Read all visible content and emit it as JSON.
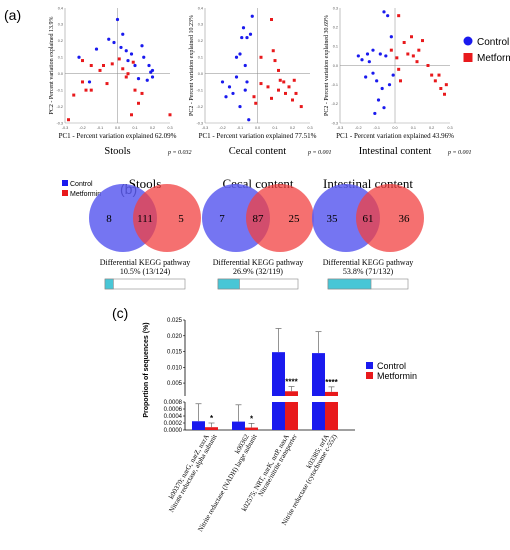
{
  "panel_labels": {
    "a": "(a)",
    "b": "(b)",
    "c": "(c)"
  },
  "legend_a": {
    "control": "Control",
    "metformin": "Metformin",
    "control_color": "#1a1aee",
    "metformin_color": "#e8191c"
  },
  "legend_b": {
    "control": "Control",
    "metformin": "Metformin"
  },
  "legend_c": {
    "control": "Control",
    "metformin": "Metformin"
  },
  "chart_data": [
    {
      "type": "scatter",
      "title": "Stools",
      "xlabel": "PC1 - Percent variation explained 62.09%",
      "ylabel": "PC2 - Percent variation explained 13.9%",
      "p_value": "p = 0.032",
      "xlim": [
        -0.3,
        0.3
      ],
      "ylim": [
        -0.3,
        0.4
      ],
      "xticks": [
        "-0.3",
        "-0.2",
        "-0.1",
        "0.0",
        "0.1",
        "0.2",
        "0.3"
      ],
      "yticks": [
        "-0.3",
        "-0.2",
        "-0.1",
        "0.0",
        "0.1",
        "0.2",
        "0.3",
        "0.4"
      ],
      "series": [
        {
          "name": "Control",
          "color": "#1a1aee",
          "points": [
            [
              -0.12,
              0.15
            ],
            [
              -0.05,
              0.21
            ],
            [
              0.0,
              0.33
            ],
            [
              0.03,
              0.24
            ],
            [
              -0.02,
              0.19
            ],
            [
              0.02,
              0.16
            ],
            [
              0.08,
              0.12
            ],
            [
              0.05,
              0.14
            ],
            [
              0.1,
              0.05
            ],
            [
              0.15,
              0.1
            ],
            [
              0.18,
              0.05
            ],
            [
              0.2,
              0.02
            ],
            [
              0.2,
              -0.02
            ],
            [
              0.17,
              -0.04
            ],
            [
              -0.22,
              0.1
            ],
            [
              -0.16,
              -0.05
            ],
            [
              0.12,
              -0.03
            ],
            [
              0.06,
              0.08
            ],
            [
              0.14,
              0.17
            ],
            [
              0.19,
              0.01
            ]
          ]
        },
        {
          "name": "Metformin",
          "color": "#e8191c",
          "points": [
            [
              -0.2,
              0.08
            ],
            [
              -0.15,
              0.05
            ],
            [
              -0.08,
              0.05
            ],
            [
              -0.1,
              0.02
            ],
            [
              -0.03,
              0.06
            ],
            [
              0.01,
              0.09
            ],
            [
              0.03,
              0.03
            ],
            [
              -0.06,
              -0.06
            ],
            [
              -0.15,
              -0.1
            ],
            [
              -0.18,
              -0.1
            ],
            [
              -0.25,
              -0.13
            ],
            [
              -0.28,
              -0.28
            ],
            [
              0.05,
              -0.02
            ],
            [
              0.09,
              0.07
            ],
            [
              0.06,
              0.0
            ],
            [
              0.1,
              -0.1
            ],
            [
              0.08,
              -0.25
            ],
            [
              0.12,
              -0.18
            ],
            [
              0.14,
              -0.12
            ],
            [
              0.3,
              -0.25
            ],
            [
              -0.2,
              -0.05
            ]
          ]
        }
      ]
    },
    {
      "type": "scatter",
      "title": "Cecal content",
      "xlabel": "PC1 - Percent variation explained 77.51%",
      "ylabel": "PC2 - Percent variation explained 10.23%",
      "p_value": "p = 0.001",
      "xlim": [
        -0.3,
        0.3
      ],
      "ylim": [
        -0.3,
        0.4
      ],
      "xticks": [
        "-0.3",
        "-0.2",
        "-0.1",
        "0.0",
        "0.1",
        "0.2",
        "0.3"
      ],
      "yticks": [
        "-0.3",
        "-0.2",
        "-0.1",
        "0.0",
        "0.1",
        "0.2",
        "0.3",
        "0.4"
      ],
      "series": [
        {
          "name": "Control",
          "color": "#1a1aee",
          "points": [
            [
              -0.09,
              0.22
            ],
            [
              -0.06,
              0.22
            ],
            [
              -0.04,
              0.24
            ],
            [
              -0.08,
              0.28
            ],
            [
              -0.03,
              0.35
            ],
            [
              -0.1,
              0.12
            ],
            [
              -0.07,
              0.05
            ],
            [
              -0.06,
              -0.05
            ],
            [
              -0.12,
              -0.02
            ],
            [
              -0.16,
              -0.08
            ],
            [
              -0.18,
              -0.14
            ],
            [
              -0.1,
              -0.2
            ],
            [
              -0.07,
              -0.1
            ],
            [
              -0.2,
              -0.05
            ],
            [
              -0.05,
              -0.28
            ],
            [
              -0.12,
              0.1
            ],
            [
              -0.14,
              -0.12
            ]
          ]
        },
        {
          "name": "Metformin",
          "color": "#e8191c",
          "points": [
            [
              0.08,
              0.33
            ],
            [
              0.09,
              0.14
            ],
            [
              0.12,
              0.02
            ],
            [
              0.15,
              -0.05
            ],
            [
              0.18,
              -0.08
            ],
            [
              0.21,
              -0.04
            ],
            [
              0.22,
              -0.12
            ],
            [
              0.2,
              -0.16
            ],
            [
              0.16,
              -0.12
            ],
            [
              0.12,
              -0.1
            ],
            [
              0.08,
              -0.15
            ],
            [
              0.06,
              -0.08
            ],
            [
              0.13,
              -0.04
            ],
            [
              -0.01,
              -0.18
            ],
            [
              -0.02,
              -0.14
            ],
            [
              0.02,
              -0.06
            ],
            [
              0.25,
              -0.2
            ],
            [
              0.02,
              0.1
            ],
            [
              0.1,
              0.08
            ]
          ]
        }
      ]
    },
    {
      "type": "scatter",
      "title": "Intestinal content",
      "xlabel": "PC1 - Percent variation explained 43.96%",
      "ylabel": "PC2 - Percent variation explained 30.69%",
      "p_value": "p = 0.001",
      "xlim": [
        -0.3,
        0.3
      ],
      "ylim": [
        -0.3,
        0.3
      ],
      "xticks": [
        "-0.3",
        "-0.2",
        "-0.1",
        "0.0",
        "0.1",
        "0.2",
        "0.3"
      ],
      "yticks": [
        "-0.3",
        "-0.2",
        "-0.1",
        "0.0",
        "0.1",
        "0.2",
        "0.3"
      ],
      "series": [
        {
          "name": "Control",
          "color": "#1a1aee",
          "points": [
            [
              -0.06,
              0.28
            ],
            [
              -0.04,
              0.26
            ],
            [
              -0.02,
              0.15
            ],
            [
              -0.05,
              0.05
            ],
            [
              -0.08,
              0.06
            ],
            [
              -0.12,
              0.08
            ],
            [
              -0.15,
              0.06
            ],
            [
              -0.18,
              0.03
            ],
            [
              -0.2,
              0.05
            ],
            [
              -0.14,
              0.02
            ],
            [
              -0.12,
              -0.04
            ],
            [
              -0.1,
              -0.08
            ],
            [
              -0.07,
              -0.12
            ],
            [
              -0.09,
              -0.18
            ],
            [
              -0.06,
              -0.22
            ],
            [
              -0.11,
              -0.25
            ],
            [
              -0.03,
              -0.1
            ],
            [
              -0.01,
              -0.05
            ],
            [
              -0.16,
              -0.06
            ]
          ]
        },
        {
          "name": "Metformin",
          "color": "#e8191c",
          "points": [
            [
              0.02,
              0.26
            ],
            [
              0.05,
              0.12
            ],
            [
              0.07,
              0.06
            ],
            [
              0.1,
              0.05
            ],
            [
              0.12,
              0.02
            ],
            [
              0.09,
              0.15
            ],
            [
              0.15,
              0.13
            ],
            [
              0.18,
              0.0
            ],
            [
              0.2,
              -0.05
            ],
            [
              0.22,
              -0.08
            ],
            [
              0.25,
              -0.12
            ],
            [
              0.27,
              -0.15
            ],
            [
              0.24,
              -0.05
            ],
            [
              0.02,
              -0.02
            ],
            [
              0.01,
              0.04
            ],
            [
              0.03,
              -0.08
            ],
            [
              0.28,
              -0.1
            ],
            [
              0.13,
              0.08
            ],
            [
              -0.02,
              0.08
            ]
          ]
        }
      ]
    },
    {
      "type": "venn",
      "title": "Stools",
      "left_only": "8",
      "overlap": "111",
      "right_only": "5",
      "caption_line1": "Differential KEGG pathway",
      "caption_line2": "10.5% (13/124)",
      "fraction": 0.105
    },
    {
      "type": "venn",
      "title": "Cecal content",
      "left_only": "7",
      "overlap": "87",
      "right_only": "25",
      "caption_line1": "Differential KEGG pathway",
      "caption_line2": "26.9% (32/119)",
      "fraction": 0.269
    },
    {
      "type": "venn",
      "title": "Intestinal content",
      "left_only": "35",
      "overlap": "61",
      "right_only": "36",
      "caption_line1": "Differential KEGG pathway",
      "caption_line2": "53.8% (71/132)",
      "fraction": 0.538
    },
    {
      "type": "bar",
      "ylabel": "Proportion of sequences (%)",
      "upper_yticks": [
        "0.025",
        "0.020",
        "0.015",
        "0.010",
        "0.005"
      ],
      "upper_ylim": [
        0.0009,
        0.025
      ],
      "lower_yticks": [
        "0.0008",
        "0.0006",
        "0.0004",
        "0.0002",
        "0.0000"
      ],
      "lower_ylim": [
        0,
        0.0008
      ],
      "categories": [
        {
          "line1": "k00370; narG, narZ, nxrA",
          "line2": "Nitrate reductase, alpha subunit"
        },
        {
          "line1": "k00362",
          "line2": "Nitrite reductase (NADH) large subunit"
        },
        {
          "line1": "k02575; NRT, narK, nrtP, nasA",
          "line2": "Nitrate/nitrite transporter"
        },
        {
          "line1": "k03385; nrfA",
          "line2": "Nitrite reductase (cytochrome c-552)"
        }
      ],
      "series": [
        {
          "name": "Control",
          "color": "#1a1aee",
          "values": [
            0.00025,
            0.00024,
            0.0148,
            0.0145
          ],
          "errors": [
            0.0005,
            0.00048,
            0.0075,
            0.0068
          ]
        },
        {
          "name": "Metformin",
          "color": "#e8191c",
          "values": [
            8e-05,
            7e-05,
            0.0024,
            0.0022
          ],
          "errors": [
            0.00012,
            0.00012,
            0.0015,
            0.0016
          ]
        }
      ],
      "significance": [
        "*",
        "*",
        "****",
        "****"
      ]
    }
  ]
}
